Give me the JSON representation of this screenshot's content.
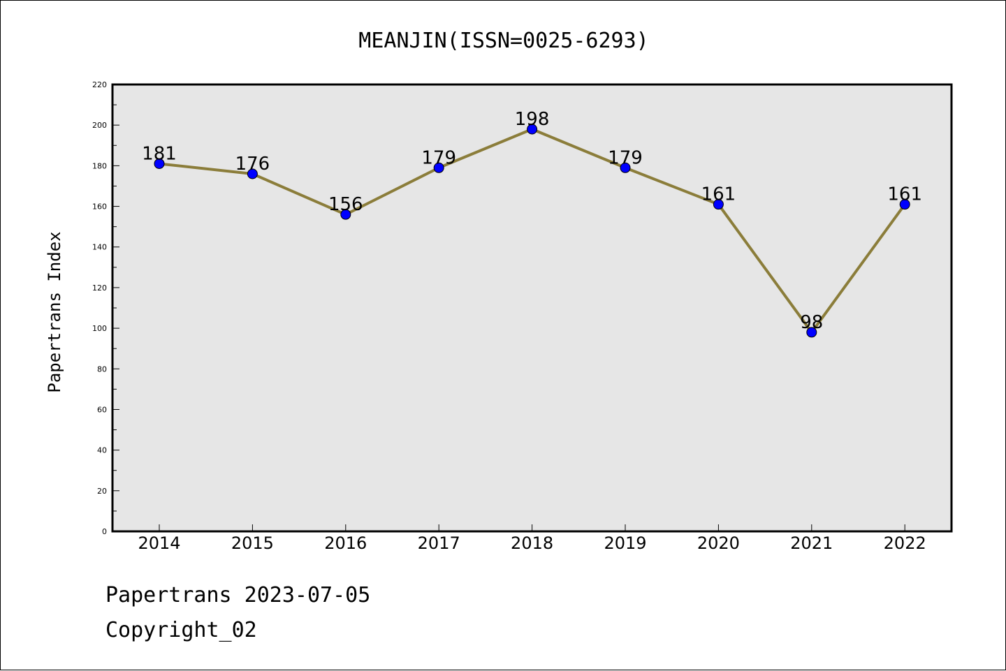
{
  "chart_data": {
    "type": "line",
    "title": "MEANJIN(ISSN=0025-6293)",
    "xlabel": "",
    "ylabel": "Papertrans Index",
    "categories": [
      "2014",
      "2015",
      "2016",
      "2017",
      "2018",
      "2019",
      "2020",
      "2021",
      "2022"
    ],
    "series": [
      {
        "values": [
          181,
          176,
          156,
          179,
          198,
          179,
          161,
          98,
          161
        ]
      }
    ],
    "ylim": [
      0,
      220
    ],
    "yticks": [
      0,
      20,
      40,
      60,
      80,
      100,
      120,
      140,
      160,
      180,
      200,
      220
    ],
    "grid": false,
    "legend": "none",
    "colors": {
      "line": "#8b7d3a",
      "marker": "#0000ff",
      "plot_background": "#e6e6e6"
    }
  },
  "footer": {
    "line1": "Papertrans 2023-07-05",
    "line2": "Copyright_02"
  }
}
